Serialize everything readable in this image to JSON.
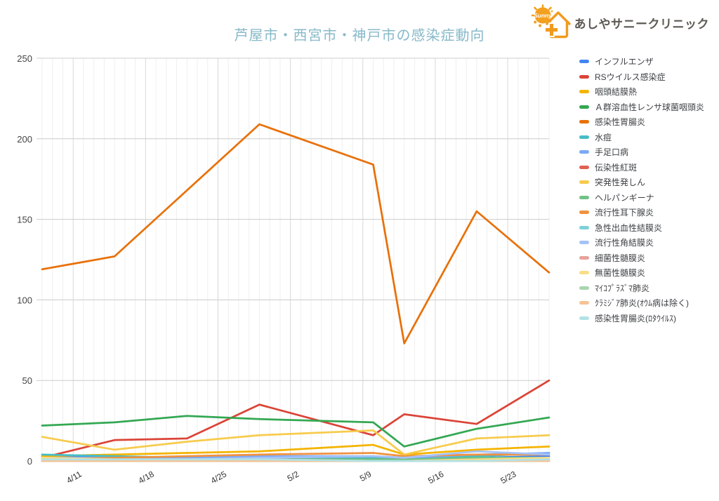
{
  "logo": {
    "clinic_name": "あしやサニークリニック",
    "sun_text": "Sunny",
    "accent_color": "#f09b1e"
  },
  "chart_data": {
    "type": "line",
    "title": "芦屋市・西宮市・神戸市の感染症動向",
    "title_color": "#87b9c9",
    "xlabel": "",
    "ylabel": "",
    "ylim": [
      0,
      250
    ],
    "y_ticks": [
      0,
      50,
      100,
      150,
      200,
      250
    ],
    "x_day_range": [
      0,
      49
    ],
    "x_dates": [
      "4/8",
      "4/15",
      "4/22",
      "4/29",
      "5/10",
      "5/13",
      "5/20",
      "5/27"
    ],
    "x_days": [
      0,
      7,
      14,
      21,
      32,
      35,
      42,
      49
    ],
    "x_tick_labels": [
      "4/11",
      "4/18",
      "4/25",
      "5/2",
      "5/9",
      "5/16",
      "5/23"
    ],
    "x_tick_days": [
      3,
      10,
      17,
      24,
      31,
      38,
      45
    ],
    "grid": {
      "vertical": "daily",
      "horizontal": "every 50"
    },
    "legend_position": "right",
    "series": [
      {
        "name": "インフルエンザ",
        "color": "#4285f4",
        "values": [
          3,
          2,
          2,
          2,
          1,
          1,
          2,
          3
        ]
      },
      {
        "name": "RSウイルス感染症",
        "color": "#db4437",
        "values": [
          2,
          13,
          14,
          35,
          16,
          29,
          23,
          50
        ]
      },
      {
        "name": "咽頭結膜熱",
        "color": "#f4b400",
        "values": [
          3,
          4,
          5,
          6,
          10,
          4,
          7,
          9
        ]
      },
      {
        "name": "Ａ群溶血性レンサ球菌咽頭炎",
        "color": "#34a853",
        "values": [
          22,
          24,
          28,
          26,
          24,
          9,
          20,
          27
        ]
      },
      {
        "name": "感染性胃腸炎",
        "color": "#e8710a",
        "values": [
          119,
          127,
          168,
          209,
          184,
          73,
          155,
          117
        ]
      },
      {
        "name": "水痘",
        "color": "#46bdc6",
        "values": [
          4,
          3,
          2,
          2,
          2,
          1,
          3,
          5
        ]
      },
      {
        "name": "手足口病",
        "color": "#7baaf7",
        "values": [
          2,
          2,
          2,
          3,
          3,
          2,
          4,
          5
        ]
      },
      {
        "name": "伝染性紅斑",
        "color": "#e06055",
        "values": [
          1,
          1,
          1,
          1,
          1,
          1,
          1,
          1
        ]
      },
      {
        "name": "突発性発しん",
        "color": "#f7cb4d",
        "values": [
          15,
          7,
          12,
          16,
          19,
          4,
          14,
          16
        ]
      },
      {
        "name": "ヘルパンギーナ",
        "color": "#71c287",
        "values": [
          0,
          0,
          0,
          1,
          1,
          1,
          2,
          2
        ]
      },
      {
        "name": "流行性耳下腺炎",
        "color": "#f0923f",
        "values": [
          1,
          2,
          3,
          4,
          5,
          3,
          4,
          4
        ]
      },
      {
        "name": "急性出血性結膜炎",
        "color": "#7ed1d7",
        "values": [
          1,
          0,
          0,
          0,
          0,
          0,
          1,
          1
        ]
      },
      {
        "name": "流行性角結膜炎",
        "color": "#a5c2f9",
        "values": [
          1,
          1,
          1,
          2,
          3,
          2,
          6,
          4
        ]
      },
      {
        "name": "細菌性髄膜炎",
        "color": "#e8a29b",
        "values": [
          0,
          0,
          0,
          0,
          0,
          0,
          1,
          1
        ]
      },
      {
        "name": "無菌性髄膜炎",
        "color": "#f9dd87",
        "values": [
          2,
          1,
          1,
          1,
          0,
          0,
          1,
          2
        ]
      },
      {
        "name": "ﾏｲｺﾌﾟﾗｽﾞﾏ肺炎",
        "color": "#a8d5b0",
        "values": [
          0,
          0,
          0,
          0,
          0,
          0,
          0,
          0
        ]
      },
      {
        "name": "ｸﾗﾐｼﾞｱ肺炎(ｵｳﾑ病は除く)",
        "color": "#f6c395",
        "values": [
          0,
          0,
          0,
          0,
          0,
          0,
          0,
          0
        ]
      },
      {
        "name": "感染性胃腸炎(ﾛﾀｳｲﾙｽ)",
        "color": "#b2e2e6",
        "values": [
          1,
          1,
          1,
          1,
          0,
          0,
          0,
          1
        ]
      }
    ],
    "axis_colors": {
      "y_label": "#444444",
      "x_label": "#333333",
      "grid_minor": "#efefef",
      "grid_major": "#d9d9d9",
      "grid_horizontal": "#cccccc",
      "baseline": "#424242"
    }
  }
}
